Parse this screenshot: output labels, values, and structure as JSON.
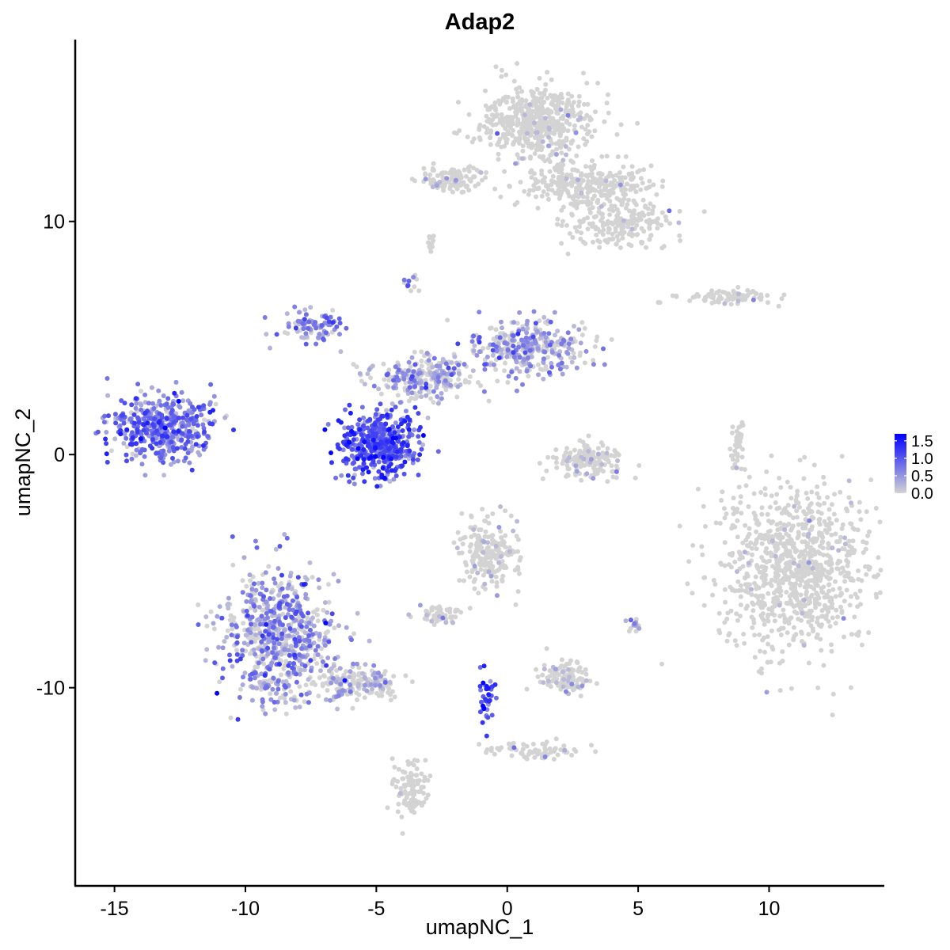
{
  "chart_data": {
    "type": "scatter",
    "title": "Adap2",
    "xlabel": "umapNC_1",
    "ylabel": "umapNC_2",
    "xlim": [
      -16.5,
      14.4
    ],
    "ylim": [
      -18.5,
      17.8
    ],
    "x_ticks": [
      -15,
      -10,
      -5,
      0,
      5,
      10
    ],
    "x_tick_labels": [
      "-15",
      "-10",
      "-5",
      "0",
      "5",
      "10"
    ],
    "y_ticks": [
      -10,
      0,
      10
    ],
    "y_tick_labels": [
      "-10",
      "0",
      "10"
    ],
    "grid": false,
    "legend": {
      "placement": "right",
      "title": "",
      "ticks": [
        0.0,
        0.5,
        1.0,
        1.5
      ],
      "tick_labels": [
        "0.0",
        "0.5",
        "1.0",
        "1.5"
      ],
      "range": [
        0,
        1.7
      ]
    },
    "color_low": "#d3d3d3",
    "color_high": "#0000ff",
    "clusters": [
      {
        "cx": 1.2,
        "cy": 14.3,
        "rx": 1.8,
        "ry": 1.3,
        "n": 520,
        "expr": 0.02
      },
      {
        "cx": 3.0,
        "cy": 11.6,
        "rx": 2.2,
        "ry": 0.8,
        "n": 300,
        "expr": 0.02
      },
      {
        "cx": -2.0,
        "cy": 11.8,
        "rx": 1.2,
        "ry": 0.5,
        "n": 120,
        "expr": 0.04
      },
      {
        "cx": 4.3,
        "cy": 10.0,
        "rx": 1.6,
        "ry": 0.9,
        "n": 200,
        "expr": 0.02
      },
      {
        "cx": 8.5,
        "cy": 6.8,
        "rx": 1.5,
        "ry": 0.25,
        "n": 90,
        "expr": 0.02
      },
      {
        "cx": -13.2,
        "cy": 1.2,
        "rx": 1.7,
        "ry": 1.2,
        "n": 460,
        "expr": 0.75
      },
      {
        "cx": -4.9,
        "cy": 0.4,
        "rx": 1.2,
        "ry": 1.2,
        "n": 440,
        "expr": 0.95
      },
      {
        "cx": -7.4,
        "cy": 5.5,
        "rx": 0.9,
        "ry": 0.6,
        "n": 100,
        "expr": 0.6
      },
      {
        "cx": -3.2,
        "cy": 3.3,
        "rx": 1.6,
        "ry": 0.8,
        "n": 260,
        "expr": 0.4
      },
      {
        "cx": 0.8,
        "cy": 4.6,
        "rx": 1.8,
        "ry": 1.0,
        "n": 340,
        "expr": 0.45
      },
      {
        "cx": 3.2,
        "cy": -0.3,
        "rx": 1.1,
        "ry": 0.6,
        "n": 150,
        "expr": 0.1
      },
      {
        "cx": 11.0,
        "cy": -5.0,
        "rx": 2.4,
        "ry": 3.0,
        "n": 950,
        "expr": 0.01
      },
      {
        "cx": 8.8,
        "cy": 0.4,
        "rx": 0.2,
        "ry": 1.0,
        "n": 40,
        "expr": 0.03
      },
      {
        "cx": -8.7,
        "cy": -7.8,
        "rx": 1.8,
        "ry": 2.3,
        "n": 680,
        "expr": 0.55
      },
      {
        "cx": -5.8,
        "cy": -9.8,
        "rx": 1.3,
        "ry": 0.6,
        "n": 180,
        "expr": 0.25
      },
      {
        "cx": -3.7,
        "cy": -14.3,
        "rx": 0.5,
        "ry": 1.0,
        "n": 110,
        "expr": 0.02
      },
      {
        "cx": -0.7,
        "cy": -4.2,
        "rx": 0.9,
        "ry": 1.2,
        "n": 220,
        "expr": 0.08
      },
      {
        "cx": -2.5,
        "cy": -6.9,
        "rx": 0.7,
        "ry": 0.3,
        "n": 60,
        "expr": 0.1
      },
      {
        "cx": 2.3,
        "cy": -9.5,
        "rx": 0.8,
        "ry": 0.6,
        "n": 120,
        "expr": 0.12
      },
      {
        "cx": 1.0,
        "cy": -12.7,
        "rx": 1.8,
        "ry": 0.3,
        "n": 70,
        "expr": 0.02
      },
      {
        "cx": -0.8,
        "cy": -10.5,
        "rx": 0.3,
        "ry": 1.2,
        "n": 40,
        "expr": 1.1
      },
      {
        "cx": -3.7,
        "cy": 7.3,
        "rx": 0.3,
        "ry": 0.3,
        "n": 12,
        "expr": 0.5
      },
      {
        "cx": -2.9,
        "cy": 9.0,
        "rx": 0.2,
        "ry": 0.4,
        "n": 12,
        "expr": 0.05
      },
      {
        "cx": 4.9,
        "cy": -7.4,
        "rx": 0.25,
        "ry": 0.3,
        "n": 14,
        "expr": 0.4
      }
    ]
  }
}
